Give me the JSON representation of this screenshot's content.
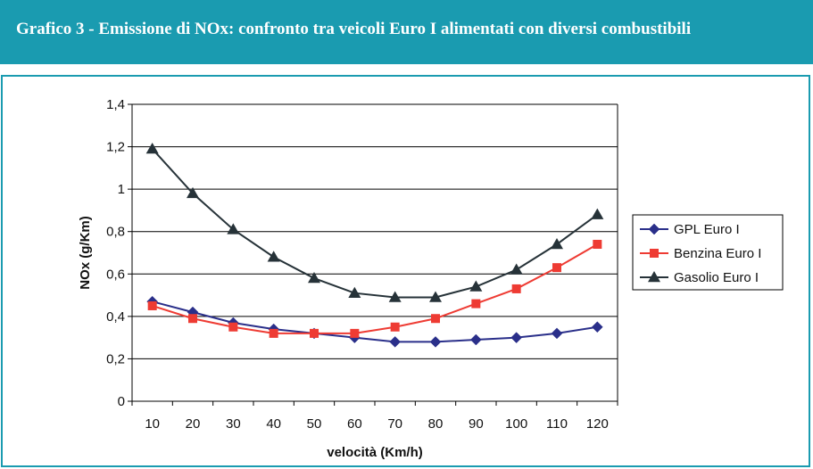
{
  "header": {
    "title": "Grafico 3 - Emissione di NOx: confronto tra veicoli Euro I alimentati con diversi combustibili"
  },
  "colors": {
    "header_bg": "#1a9bb0",
    "gpl": "#2a2f8a",
    "benzina": "#ee3b33",
    "gasolio": "#263238"
  },
  "chart_data": {
    "type": "line",
    "title": "",
    "xlabel": "velocità (Km/h)",
    "ylabel": "NOx (g/Km)",
    "categories": [
      "10",
      "20",
      "30",
      "40",
      "50",
      "60",
      "70",
      "80",
      "90",
      "100",
      "110",
      "120"
    ],
    "ylim": [
      0,
      1.4
    ],
    "yticks": [
      "0",
      "0,2",
      "0,4",
      "0,6",
      "0,8",
      "1",
      "1,2",
      "1,4"
    ],
    "ytick_values": [
      0,
      0.2,
      0.4,
      0.6,
      0.8,
      1.0,
      1.2,
      1.4
    ],
    "grid": "horizontal",
    "legend_position": "right",
    "series": [
      {
        "name": "GPL Euro I",
        "marker": "diamond",
        "color": "#2a2f8a",
        "values": [
          0.47,
          0.42,
          0.37,
          0.34,
          0.32,
          0.3,
          0.28,
          0.28,
          0.29,
          0.3,
          0.32,
          0.35
        ]
      },
      {
        "name": "Benzina Euro I",
        "marker": "square",
        "color": "#ee3b33",
        "values": [
          0.45,
          0.39,
          0.35,
          0.32,
          0.32,
          0.32,
          0.35,
          0.39,
          0.46,
          0.53,
          0.63,
          0.74
        ]
      },
      {
        "name": "Gasolio Euro I",
        "marker": "triangle",
        "color": "#263238",
        "values": [
          1.19,
          0.98,
          0.81,
          0.68,
          0.58,
          0.51,
          0.49,
          0.49,
          0.54,
          0.62,
          0.74,
          0.88
        ]
      }
    ]
  }
}
